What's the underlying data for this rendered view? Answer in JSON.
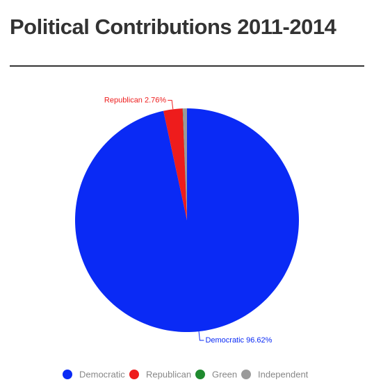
{
  "chart_data": {
    "type": "pie",
    "title": "Political Contributions 2011-2014",
    "categories": [
      "Democratic",
      "Republican",
      "Green",
      "Independent"
    ],
    "values": [
      96.62,
      2.76,
      0.04,
      0.58
    ],
    "value_labels": [
      "Democratic 96.62%",
      "Republican 2.76%",
      null,
      null
    ],
    "colors": [
      "#0a2af5",
      "#ee1c1c",
      "#1f8a2e",
      "#9a9a9a"
    ],
    "legend": "bottom"
  }
}
